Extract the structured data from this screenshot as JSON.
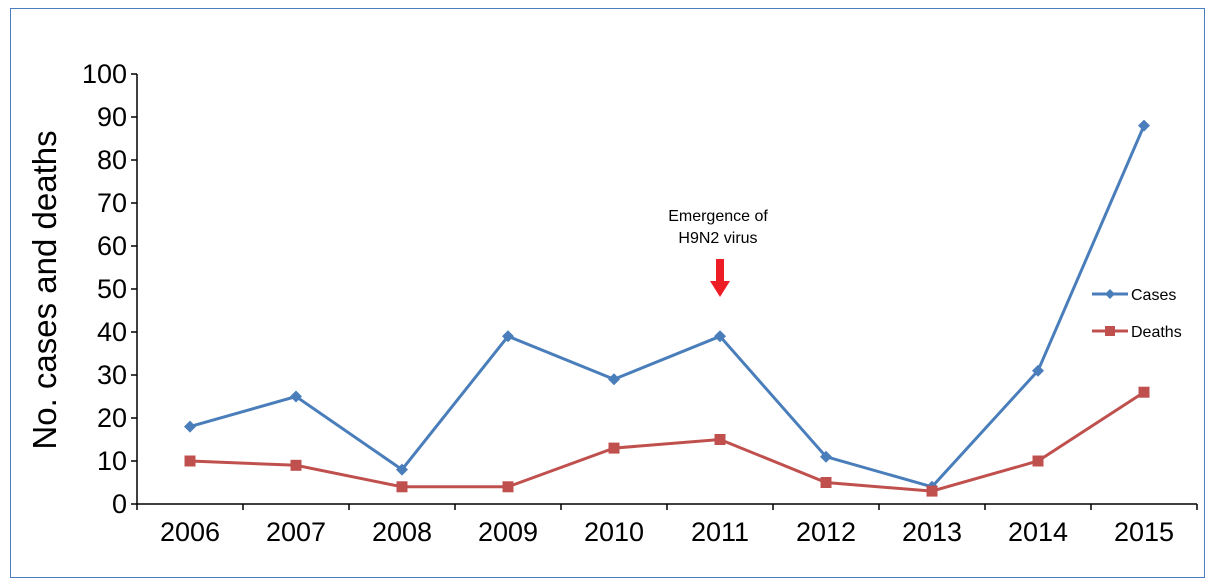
{
  "chart_data": {
    "type": "line",
    "title": "",
    "xlabel": "",
    "ylabel": "No. cases and deaths",
    "ylim": [
      0,
      100
    ],
    "yticks": [
      "0",
      "10",
      "20",
      "30",
      "40",
      "50",
      "60",
      "70",
      "80",
      "90",
      "100"
    ],
    "categories": [
      "2006",
      "2007",
      "2008",
      "2009",
      "2010",
      "2011",
      "2012",
      "2013",
      "2014",
      "2015"
    ],
    "series": [
      {
        "name": "Cases",
        "color": "#4a7ebb",
        "marker": "diamond",
        "values": [
          18,
          25,
          8,
          39,
          29,
          39,
          11,
          4,
          31,
          88
        ]
      },
      {
        "name": "Deaths",
        "color": "#c0504d",
        "marker": "square",
        "values": [
          10,
          9,
          4,
          4,
          13,
          15,
          5,
          3,
          10,
          26
        ]
      }
    ],
    "legend": "right",
    "grid": false,
    "annotation": {
      "lines": [
        "Emergence of",
        "H9N2 virus"
      ],
      "category": "2011",
      "arrow_color": "#ee1c25"
    }
  }
}
